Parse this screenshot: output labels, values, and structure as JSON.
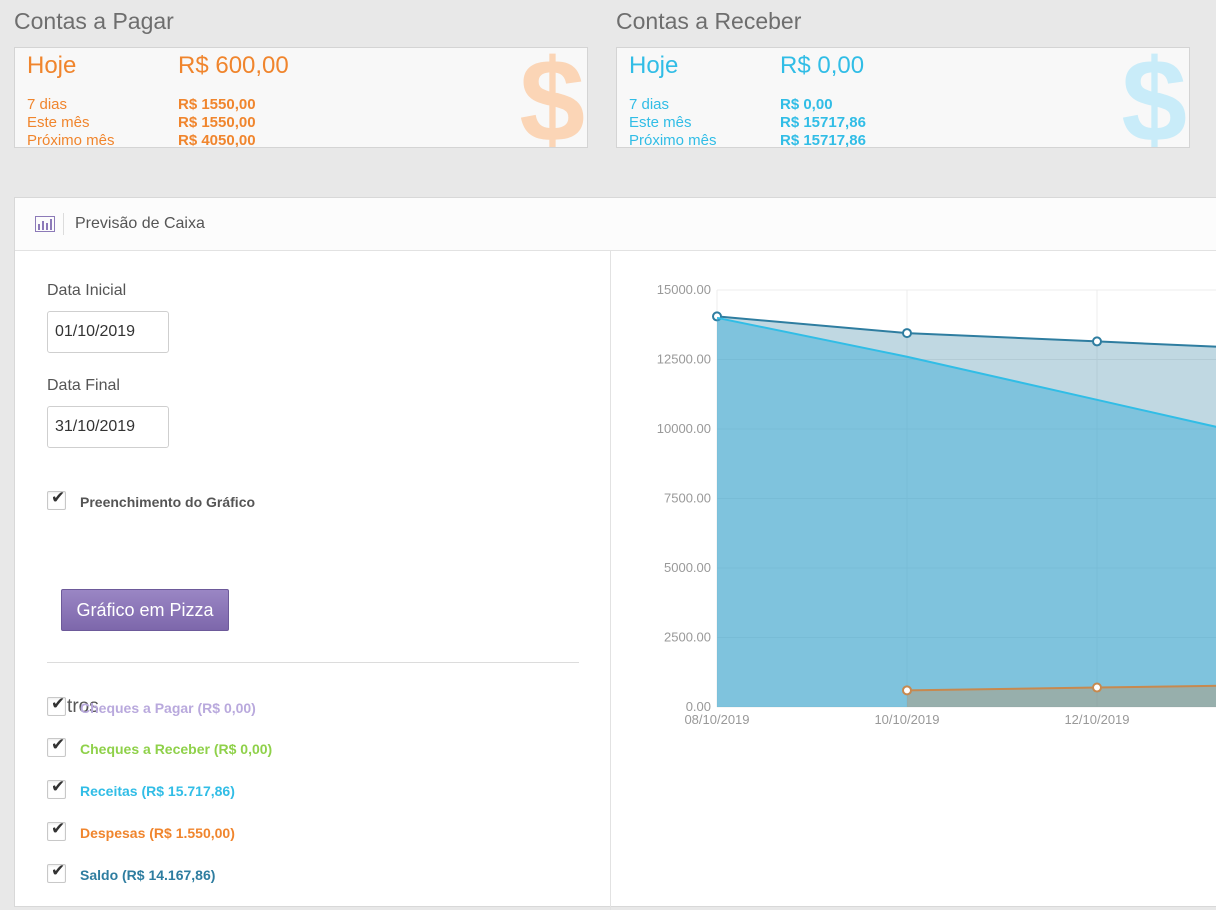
{
  "pagar": {
    "title": "Contas a Pagar",
    "hoje_label": "Hoje",
    "hoje_value": "R$ 600,00",
    "rows": [
      {
        "label": "7 dias",
        "value": "R$ 1550,00"
      },
      {
        "label": "Este mês",
        "value": "R$ 1550,00"
      },
      {
        "label": "Próximo mês",
        "value": "R$ 4050,00"
      }
    ],
    "color": "#f0852d"
  },
  "receber": {
    "title": "Contas a Receber",
    "hoje_label": "Hoje",
    "hoje_value": "R$ 0,00",
    "rows": [
      {
        "label": "7 dias",
        "value": "R$ 0,00"
      },
      {
        "label": "Este mês",
        "value": "R$ 15717,86"
      },
      {
        "label": "Próximo mês",
        "value": "R$ 15717,86"
      }
    ],
    "color": "#31bde6"
  },
  "dollar_symbol": "$",
  "panel": {
    "title": "Previsão de Caixa",
    "icon": "bar-chart-icon"
  },
  "form": {
    "data_inicial_label": "Data Inicial",
    "data_inicial_value": "01/10/2019",
    "data_final_label": "Data Final",
    "data_final_value": "31/10/2019",
    "preenchimento_label": "Preenchimento do Gráfico",
    "pizza_button": "Gráfico em Pizza",
    "check_mark": "✔"
  },
  "filters": {
    "title": "Filtros",
    "items": [
      {
        "label": "Cheques a Pagar (R$ 0,00)",
        "color": "#b9a9dd",
        "checked": true
      },
      {
        "label": "Cheques a Receber (R$ 0,00)",
        "color": "#8fd14a",
        "checked": true
      },
      {
        "label": "Receitas (R$ 15.717,86)",
        "color": "#31bde6",
        "checked": true
      },
      {
        "label": "Despesas (R$ 1.550,00)",
        "color": "#f0852d",
        "checked": true
      },
      {
        "label": "Saldo (R$ 14.167,86)",
        "color": "#2e7da0",
        "checked": true
      }
    ]
  },
  "chart_data": {
    "type": "area",
    "x": [
      "08/10/2019",
      "10/10/2019",
      "12/10/2019"
    ],
    "ylim": [
      0,
      15000
    ],
    "yticks": [
      "0.00",
      "2500.00",
      "5000.00",
      "7500.00",
      "10000.00",
      "12500.00",
      "15000.00"
    ],
    "series": [
      {
        "name": "Saldo",
        "color": "#2e7da0",
        "points": [
          {
            "x": "08/10/2019",
            "y": 14050
          },
          {
            "x": "10/10/2019",
            "y": 13450
          },
          {
            "x": "12/10/2019",
            "y": 13150
          }
        ]
      },
      {
        "name": "Receitas",
        "color": "#31bde6",
        "points": [
          {
            "x": "08/10/2019",
            "y": 14000
          },
          {
            "x": "10/10/2019",
            "y": 12600
          },
          {
            "x": "12/10/2019",
            "y": 11050
          }
        ]
      },
      {
        "name": "Despesas",
        "color": "#c7894f",
        "points": [
          {
            "x": "10/10/2019",
            "y": 600
          },
          {
            "x": "12/10/2019",
            "y": 700
          }
        ]
      }
    ],
    "grid": true
  }
}
